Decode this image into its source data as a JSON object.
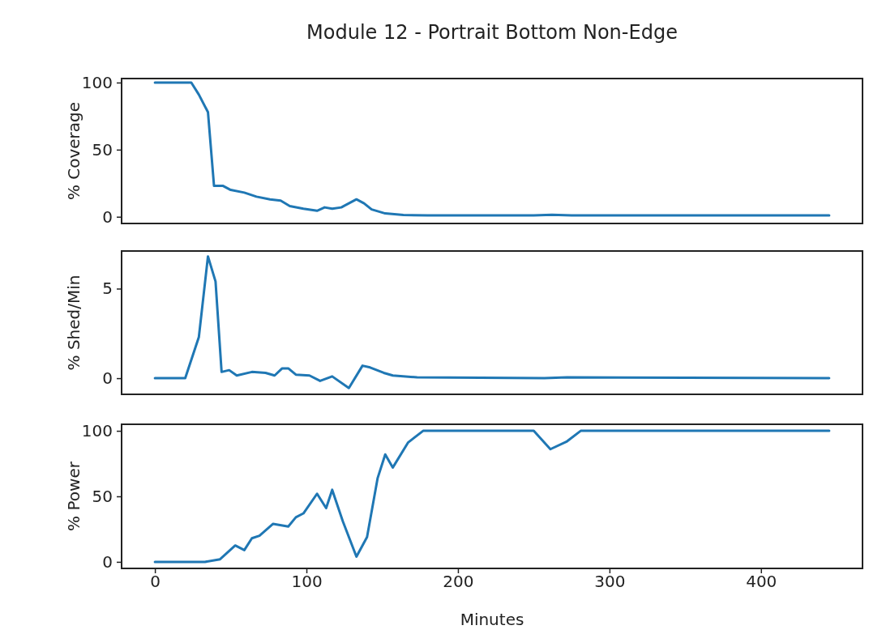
{
  "chart_data": [
    {
      "type": "line",
      "title": "Module 12 - Portrait Bottom Non-Edge",
      "ylabel": "% Coverage",
      "xlim": [
        -22,
        467
      ],
      "ylim": [
        -5,
        103
      ],
      "yticks": [
        0,
        50,
        100
      ],
      "tick_labels": "y",
      "series": [
        {
          "color": "#1f77b4",
          "x": [
            0,
            24,
            29,
            35,
            39,
            45,
            50,
            59,
            67,
            76,
            83,
            89,
            98,
            107,
            112,
            117,
            123,
            133,
            138,
            143,
            152,
            164,
            180,
            250,
            262,
            275,
            445
          ],
          "values": [
            100,
            100,
            91,
            78,
            23,
            23,
            20,
            18,
            15,
            13,
            12,
            8,
            6,
            4.5,
            7,
            6,
            7,
            13,
            10,
            5.5,
            2.5,
            1.3,
            1,
            1,
            1.5,
            1,
            1
          ]
        }
      ]
    },
    {
      "type": "line",
      "ylabel": "% Shed/Min",
      "xlim": [
        -22,
        467
      ],
      "ylim": [
        -0.9,
        7.1
      ],
      "yticks": [
        0,
        5
      ],
      "tick_labels": "y",
      "series": [
        {
          "color": "#1f77b4",
          "x": [
            0,
            20,
            29,
            35,
            40,
            44,
            49,
            54,
            64,
            73,
            79,
            84,
            88,
            93,
            102,
            109,
            117,
            128,
            137,
            142,
            151,
            157,
            173,
            257,
            272,
            445
          ],
          "values": [
            0,
            0,
            2.3,
            6.8,
            5.4,
            0.35,
            0.45,
            0.15,
            0.35,
            0.3,
            0.15,
            0.55,
            0.55,
            0.2,
            0.15,
            -0.15,
            0.1,
            -0.55,
            0.7,
            0.6,
            0.3,
            0.15,
            0.05,
            0,
            0.05,
            0
          ]
        }
      ]
    },
    {
      "type": "line",
      "xlabel": "Minutes",
      "ylabel": "% Power",
      "xlim": [
        -22,
        467
      ],
      "ylim": [
        -5,
        105
      ],
      "xticks": [
        0,
        100,
        200,
        300,
        400
      ],
      "yticks": [
        0,
        50,
        100
      ],
      "series": [
        {
          "color": "#1f77b4",
          "x": [
            0,
            33,
            43,
            53,
            59,
            64,
            69,
            78,
            88,
            93,
            98,
            107,
            113,
            117,
            124,
            133,
            140,
            147,
            152,
            157,
            167,
            177,
            250,
            261,
            272,
            281,
            445
          ],
          "values": [
            0,
            0,
            2,
            12.5,
            9,
            18,
            20,
            29,
            27,
            34,
            37,
            52,
            41,
            55,
            31,
            4,
            19,
            64,
            82,
            72,
            91,
            100,
            100,
            86,
            92,
            100,
            100
          ]
        }
      ]
    }
  ]
}
